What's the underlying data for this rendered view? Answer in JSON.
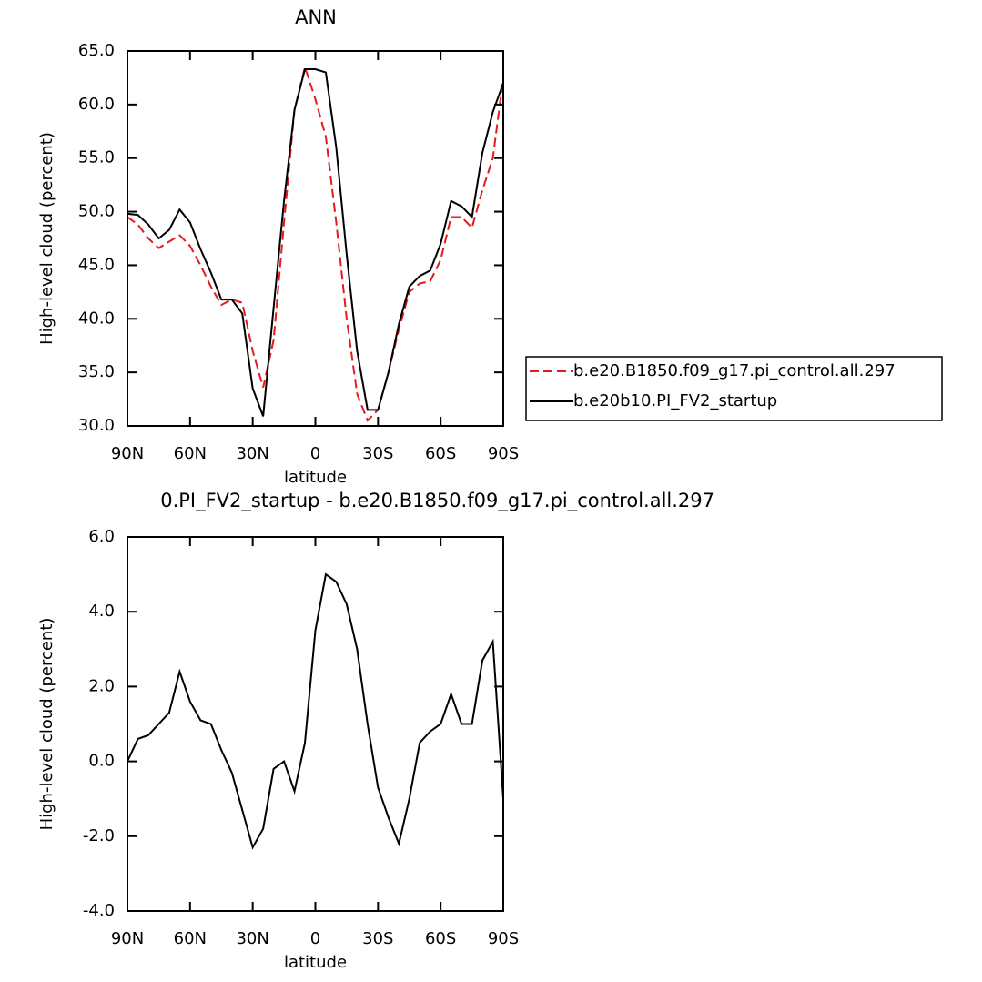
{
  "chart_data": [
    {
      "type": "line",
      "title": "ANN",
      "x_label": "latitude",
      "y_label": "High-level cloud (percent)",
      "x": [
        90,
        85,
        80,
        75,
        70,
        65,
        60,
        55,
        50,
        45,
        40,
        35,
        30,
        25,
        20,
        15,
        10,
        5,
        0,
        -5,
        -10,
        -15,
        -20,
        -25,
        -30,
        -35,
        -40,
        -45,
        -50,
        -55,
        -60,
        -65,
        -70,
        -75,
        -80,
        -85,
        -90
      ],
      "xlim": [
        90,
        -90
      ],
      "xticks": [
        {
          "value": 90,
          "label": "90N"
        },
        {
          "value": 60,
          "label": "60N"
        },
        {
          "value": 30,
          "label": "30N"
        },
        0,
        {
          "value": -30,
          "label": "30S"
        },
        {
          "value": -60,
          "label": "60S"
        },
        {
          "value": -90,
          "label": "90S"
        }
      ],
      "ylim": [
        30,
        65
      ],
      "yticks": [
        {
          "value": 30,
          "label": "30.0"
        },
        {
          "value": 35,
          "label": "35.0"
        },
        {
          "value": 40,
          "label": "40.0"
        },
        {
          "value": 45,
          "label": "45.0"
        },
        {
          "value": 50,
          "label": "50.0"
        },
        {
          "value": 55,
          "label": "55.0"
        },
        {
          "value": 60,
          "label": "60.0"
        },
        {
          "value": 65,
          "label": "65.0"
        }
      ],
      "legend": "right",
      "series": [
        {
          "name": "b.e20.B1850.f09_g17.pi_control.all.297",
          "color": "#e41a1c",
          "dashed": true,
          "values": [
            49.5,
            48.8,
            47.5,
            46.6,
            47.2,
            47.8,
            46.8,
            45,
            43,
            41.3,
            41.8,
            41.5,
            37,
            33.6,
            38,
            49,
            59.5,
            63.5,
            60.5,
            57,
            49,
            40,
            33,
            30.5,
            31.5,
            35,
            39,
            42.5,
            43.3,
            43.5,
            45.5,
            49.5,
            49.5,
            48.5,
            52,
            55,
            62.5
          ]
        },
        {
          "name": "b.e20b10.PI_FV2_startup",
          "color": "#000000",
          "dashed": false,
          "values": [
            49.8,
            49.7,
            48.8,
            47.5,
            48.3,
            50.2,
            49,
            46.5,
            44.3,
            41.8,
            41.8,
            40.5,
            33.5,
            30.9,
            41,
            51,
            59.5,
            63.3,
            63.3,
            63,
            56,
            46,
            37,
            31.5,
            31.5,
            35,
            39.5,
            43,
            44,
            44.5,
            47,
            51,
            50.5,
            49.5,
            55.5,
            59.3,
            62
          ]
        }
      ]
    },
    {
      "type": "line",
      "title": "0.PI_FV2_startup - b.e20.B1850.f09_g17.pi_control.all.297",
      "x_label": "latitude",
      "y_label": "High-level cloud (percent)",
      "x": [
        90,
        85,
        80,
        75,
        70,
        65,
        60,
        55,
        50,
        45,
        40,
        35,
        30,
        25,
        20,
        15,
        10,
        5,
        0,
        -5,
        -10,
        -15,
        -20,
        -25,
        -30,
        -35,
        -40,
        -45,
        -50,
        -55,
        -60,
        -65,
        -70,
        -75,
        -80,
        -85,
        -90
      ],
      "xlim": [
        90,
        -90
      ],
      "xticks": [
        {
          "value": 90,
          "label": "90N"
        },
        {
          "value": 60,
          "label": "60N"
        },
        {
          "value": 30,
          "label": "30N"
        },
        0,
        {
          "value": -30,
          "label": "30S"
        },
        {
          "value": -60,
          "label": "60S"
        },
        {
          "value": -90,
          "label": "90S"
        }
      ],
      "ylim": [
        -4,
        6
      ],
      "yticks": [
        {
          "value": -4,
          "label": "-4.0"
        },
        {
          "value": -2,
          "label": "-2.0"
        },
        {
          "value": 0,
          "label": "0.0"
        },
        {
          "value": 2,
          "label": "2.0"
        },
        {
          "value": 4,
          "label": "4.0"
        },
        {
          "value": 6,
          "label": "6.0"
        }
      ],
      "series": [
        {
          "color": "#000000",
          "dashed": false,
          "values": [
            0,
            0.6,
            0.7,
            1.0,
            1.3,
            2.4,
            1.6,
            1.1,
            1.0,
            0.3,
            -0.3,
            -1.3,
            -2.3,
            -1.8,
            -0.2,
            0.0,
            -0.8,
            0.5,
            3.5,
            5.0,
            4.8,
            4.2,
            3.0,
            1.0,
            -0.7,
            -1.5,
            -2.2,
            -1.0,
            0.5,
            0.8,
            1.0,
            1.8,
            1.0,
            1.0,
            2.7,
            3.2,
            -1.0
          ]
        }
      ]
    }
  ]
}
